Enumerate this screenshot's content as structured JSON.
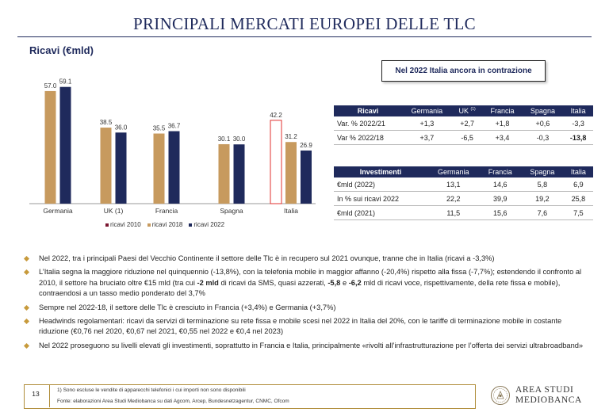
{
  "title": "PRINCIPALI MERCATI EUROPEI DELLE TLC",
  "subtitle": "Ricavi (€mld)",
  "chart_data": {
    "type": "bar",
    "categories": [
      "Germania",
      "UK (1)",
      "Francia",
      "Spagna",
      "Italia"
    ],
    "series": [
      {
        "name": "ricavi 2010",
        "color": "#ffffff",
        "values": [
          null,
          null,
          null,
          null,
          42.2
        ],
        "labels": [
          "",
          "",
          "",
          "",
          "42.2"
        ]
      },
      {
        "name": "ricavi 2018",
        "color": "#c79a5e",
        "values": [
          57.0,
          38.5,
          35.5,
          30.1,
          31.2
        ],
        "labels": [
          "57.0",
          "38.5",
          "35.5",
          "30.1",
          "31.2"
        ]
      },
      {
        "name": "ricavi 2022",
        "color": "#1f2a5c",
        "values": [
          59.1,
          36.0,
          36.7,
          30.0,
          26.9
        ],
        "labels": [
          "59.1",
          "36.0",
          "36.7",
          "30.0",
          "26.9"
        ]
      }
    ],
    "ylim": [
      0,
      65
    ],
    "grid": false,
    "legend_position": "bottom",
    "legend_colors": {
      "ricavi 2010": "#7a1630",
      "ricavi 2018": "#c79a5e",
      "ricavi 2022": "#1f2a5c"
    },
    "highlight_border": "#e0322f"
  },
  "callout": "Nel 2022 Italia ancora in contrazione",
  "ricavi_table": {
    "headers": [
      "Ricavi",
      "Germania",
      "UK",
      "Francia",
      "Spagna",
      "Italia"
    ],
    "uk_sup": "(1)",
    "rows": [
      [
        "Var. % 2022/21",
        "+1,3",
        "+2,7",
        "+1,8",
        "+0,6",
        "-3,3"
      ],
      [
        "Var % 2022/18",
        "+3,7",
        "-6,5",
        "+3,4",
        "-0,3",
        "-13,8"
      ]
    ]
  },
  "investimenti_table": {
    "headers": [
      "Investimenti",
      "Germania",
      "Francia",
      "Spagna",
      "Italia"
    ],
    "rows": [
      [
        "€mld (2022)",
        "13,1",
        "14,6",
        "5,8",
        "6,9"
      ],
      [
        "In % sui ricavi 2022",
        "22,2",
        "39,9",
        "19,2",
        "25,8"
      ],
      [
        "€mld (2021)",
        "11,5",
        "15,6",
        "7,6",
        "7,5"
      ]
    ]
  },
  "bullets": {
    "b1": "Nel 2022, tra i principali Paesi del Vecchio Continente il settore delle Tlc è in recupero sul 2021 ovunque, tranne che in Italia (ricavi a -3,3%)",
    "b2_part1": "L’Italia segna la maggiore riduzione nel quinquennio (-13,8%), con la telefonia mobile in maggior affanno (-20,4%) rispetto alla fissa (-7,7%); estendendo il confronto al 2010, il settore ha bruciato oltre €15 mld (tra cui ",
    "b2_bold1": "-2 mld",
    "b2_part2": " di ricavi da SMS, quasi azzerati, ",
    "b2_bold2": "-5,8",
    "b2_part3": " e ",
    "b2_bold3": "-6,2",
    "b2_part4": " mld di ricavi voce, rispettivamente, della rete fissa e mobile), contraendosi a un tasso medio ponderato del 3,7%",
    "b3": "Sempre nel 2022-18, il settore delle Tlc è cresciuto in Francia (+3,4%) e Germania (+3,7%)",
    "b4": "Headwinds regolamentari: ricavi da servizi di terminazione su rete fissa e mobile scesi nel 2022 in Italia del 20%, con le tariffe di terminazione mobile in costante riduzione (€0,76 nel 2020, €0,67 nel 2021, €0,55 nel 2022 e €0,4 nel 2023)",
    "b5": "Nel 2022 proseguono su livelli elevati gli investimenti, soprattutto in Francia e Italia, principalmente «rivolti all’infrastrutturazione per l’offerta dei servizi ultrabroadband»"
  },
  "footer": {
    "page": "13",
    "note": "1) Sono escluse le vendite di apparecchi telefonici i cui importi non sono disponibili",
    "source": "Fonte: elaborazioni Area Studi Mediobanca su dati Agcom, Arcep, Bundesnetzagentur, CNMC, Ofcom",
    "logo_line1": "AREA STUDI",
    "logo_line2": "MEDIOBANCA"
  }
}
